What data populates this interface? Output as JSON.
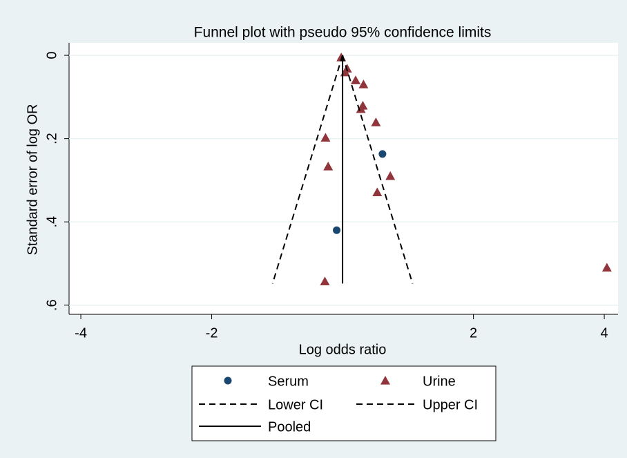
{
  "chart_data": {
    "type": "scatter",
    "title": "Funnel plot with pseudo 95% confidence limits",
    "x_label": "Log odds ratio",
    "y_label": "Standard error of log OR",
    "xlim": [
      -4.18,
      4.21
    ],
    "ylim": [
      -0.03,
      0.622
    ],
    "y_reversed": true,
    "xticks": [
      -4,
      -2,
      2,
      4
    ],
    "yticks": [
      0,
      {
        "value": 0.2,
        "label": ".2"
      },
      {
        "value": 0.4,
        "label": ".4"
      },
      {
        "value": 0.6,
        "label": ".6"
      }
    ],
    "grid": true,
    "legend_position": "bottom",
    "series": [
      {
        "name": "Serum",
        "marker": "circle",
        "color": "#1a476f",
        "x": [
          0.61,
          -0.09
        ],
        "values": [
          0.237,
          0.42
        ]
      },
      {
        "name": "Urine",
        "marker": "triangle",
        "color": "#90353b",
        "x": [
          -0.02,
          0.07,
          0.04,
          0.2,
          0.32,
          0.31,
          0.28,
          0.51,
          -0.26,
          -0.22,
          0.73,
          0.53,
          -0.27,
          4.04
        ],
        "values": [
          0.005,
          0.032,
          0.041,
          0.06,
          0.07,
          0.121,
          0.129,
          0.161,
          0.198,
          0.267,
          0.29,
          0.329,
          0.543,
          0.51
        ]
      },
      {
        "name": "Lower CI",
        "marker": "dashed",
        "color": "#000000",
        "x": [
          0,
          -1.07
        ],
        "values": [
          0,
          0.548
        ]
      },
      {
        "name": "Upper CI",
        "marker": "dashed",
        "color": "#000000",
        "x": [
          0,
          1.07
        ],
        "values": [
          0,
          0.548
        ]
      },
      {
        "name": "Pooled",
        "marker": "solid",
        "color": "#000000",
        "x": [
          0,
          0
        ],
        "values": [
          0,
          0.548
        ]
      }
    ]
  }
}
